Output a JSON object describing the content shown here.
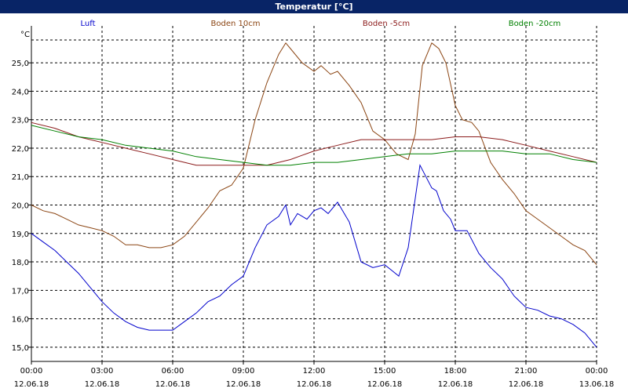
{
  "window": {
    "title": "Temperatur [°C]"
  },
  "chart_data": {
    "type": "line",
    "title": "Temperatur [°C]",
    "ylabel": "°C",
    "xlabel": "",
    "grid": true,
    "legend_position": "top",
    "ylim": [
      14.5,
      26.3
    ],
    "y_ticks": [
      {
        "value": 25.0,
        "label": "25,0"
      },
      {
        "value": 24.0,
        "label": "24,0"
      },
      {
        "value": 23.0,
        "label": "23,0"
      },
      {
        "value": 22.0,
        "label": "22,0"
      },
      {
        "value": 21.0,
        "label": "21,0"
      },
      {
        "value": 20.0,
        "label": "20,0"
      },
      {
        "value": 19.0,
        "label": "19,0"
      },
      {
        "value": 18.0,
        "label": "18,0"
      },
      {
        "value": 17.0,
        "label": "17,0"
      },
      {
        "value": 16.0,
        "label": "16,0"
      },
      {
        "value": 15.0,
        "label": "15,0"
      }
    ],
    "xlim": [
      0,
      24
    ],
    "x_ticks": [
      {
        "value": 0,
        "time": "00:00",
        "date": "12.06.18"
      },
      {
        "value": 3,
        "time": "03:00",
        "date": "12.06.18"
      },
      {
        "value": 6,
        "time": "06:00",
        "date": "12.06.18"
      },
      {
        "value": 9,
        "time": "09:00",
        "date": "12.06.18"
      },
      {
        "value": 12,
        "time": "12:00",
        "date": "12.06.18"
      },
      {
        "value": 15,
        "time": "15:00",
        "date": "12.06.18"
      },
      {
        "value": 18,
        "time": "18:00",
        "date": "12.06.18"
      },
      {
        "value": 21,
        "time": "21:00",
        "date": "12.06.18"
      },
      {
        "value": 24,
        "time": "00:00",
        "date": "13.06.18"
      }
    ],
    "series": [
      {
        "name": "Luft",
        "color": "#0000cc",
        "x": [
          0,
          0.5,
          1,
          1.5,
          2,
          2.5,
          3,
          3.5,
          4,
          4.5,
          5,
          5.5,
          6,
          6.5,
          7,
          7.5,
          8,
          8.5,
          9,
          9.5,
          10,
          10.5,
          10.8,
          11,
          11.3,
          11.7,
          12,
          12.3,
          12.6,
          13,
          13.5,
          14,
          14.5,
          15,
          15.3,
          15.6,
          16,
          16.5,
          17,
          17.2,
          17.5,
          17.8,
          18,
          18.5,
          19,
          19.5,
          20,
          20.5,
          21,
          21.5,
          22,
          22.5,
          23,
          23.5,
          24
        ],
        "y": [
          19.0,
          18.7,
          18.4,
          18.0,
          17.6,
          17.1,
          16.6,
          16.2,
          15.9,
          15.7,
          15.6,
          15.6,
          15.6,
          15.9,
          16.2,
          16.6,
          16.8,
          17.2,
          17.5,
          18.5,
          19.3,
          19.6,
          20.0,
          19.3,
          19.7,
          19.5,
          19.8,
          19.9,
          19.7,
          20.1,
          19.4,
          18.0,
          17.8,
          17.9,
          17.7,
          17.5,
          18.5,
          21.4,
          20.6,
          20.5,
          19.8,
          19.5,
          19.1,
          19.1,
          18.3,
          17.8,
          17.4,
          16.8,
          16.4,
          16.3,
          16.1,
          16.0,
          15.8,
          15.5,
          15.0
        ]
      },
      {
        "name": "Boden 10cm",
        "color": "#8b4513",
        "x": [
          0,
          0.5,
          1,
          1.5,
          2,
          2.5,
          3,
          3.5,
          4,
          4.5,
          5,
          5.5,
          6,
          6.5,
          7,
          7.5,
          8,
          8.5,
          9,
          9.5,
          10,
          10.5,
          10.8,
          11,
          11.5,
          12,
          12.3,
          12.7,
          13,
          13.5,
          14,
          14.5,
          15,
          15.5,
          16,
          16.3,
          16.6,
          17,
          17.3,
          17.6,
          18,
          18.3,
          18.7,
          19,
          19.5,
          20,
          20.5,
          21,
          21.5,
          22,
          22.5,
          23,
          23.5,
          24
        ],
        "y": [
          20.0,
          19.8,
          19.7,
          19.5,
          19.3,
          19.2,
          19.1,
          18.9,
          18.6,
          18.6,
          18.5,
          18.5,
          18.6,
          18.9,
          19.4,
          19.9,
          20.5,
          20.7,
          21.3,
          23.0,
          24.3,
          25.3,
          25.7,
          25.5,
          25.0,
          24.7,
          24.9,
          24.6,
          24.7,
          24.2,
          23.6,
          22.6,
          22.3,
          21.8,
          21.6,
          22.5,
          24.9,
          25.7,
          25.5,
          25.0,
          23.5,
          23.0,
          22.9,
          22.6,
          21.5,
          20.9,
          20.4,
          19.8,
          19.5,
          19.2,
          18.9,
          18.6,
          18.4,
          17.9
        ]
      },
      {
        "name": "Boden -5cm",
        "color": "#8b1a1a",
        "x": [
          0,
          1,
          2,
          3,
          4,
          5,
          6,
          7,
          8,
          9,
          10,
          11,
          12,
          13,
          14,
          15,
          16,
          17,
          18,
          19,
          20,
          21,
          22,
          23,
          24
        ],
        "y": [
          22.9,
          22.7,
          22.4,
          22.2,
          22.0,
          21.8,
          21.6,
          21.4,
          21.4,
          21.4,
          21.4,
          21.6,
          21.9,
          22.1,
          22.3,
          22.3,
          22.3,
          22.3,
          22.4,
          22.4,
          22.3,
          22.1,
          21.9,
          21.7,
          21.5
        ]
      },
      {
        "name": "Boden -20cm",
        "color": "#008000",
        "x": [
          0,
          1,
          2,
          3,
          4,
          5,
          6,
          7,
          8,
          9,
          10,
          11,
          12,
          13,
          14,
          15,
          16,
          17,
          18,
          19,
          20,
          21,
          22,
          23,
          24
        ],
        "y": [
          22.8,
          22.6,
          22.4,
          22.3,
          22.1,
          22.0,
          21.9,
          21.7,
          21.6,
          21.5,
          21.4,
          21.4,
          21.5,
          21.5,
          21.6,
          21.7,
          21.8,
          21.8,
          21.9,
          21.9,
          21.9,
          21.8,
          21.8,
          21.6,
          21.5
        ]
      }
    ]
  }
}
